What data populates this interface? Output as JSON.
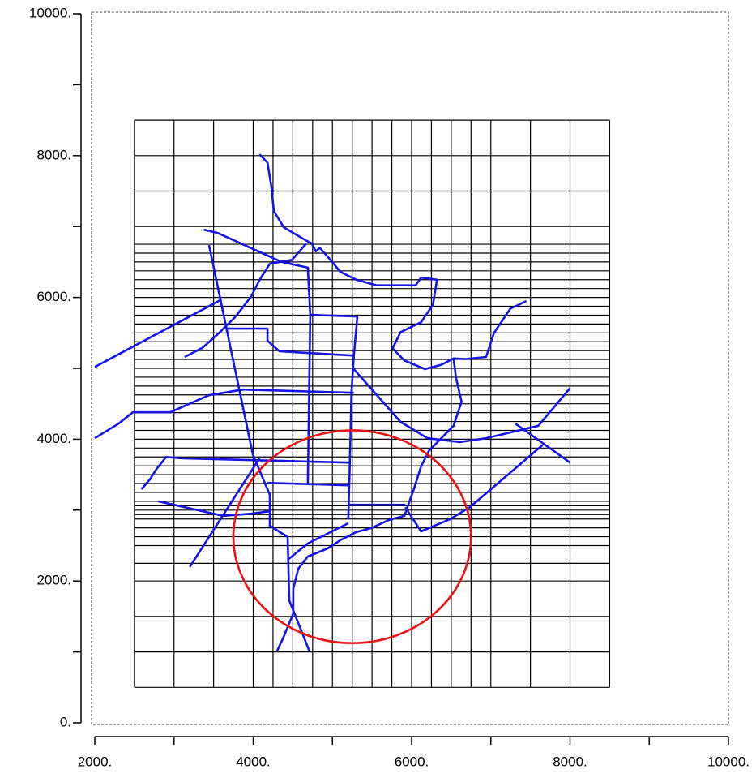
{
  "chart_data": {
    "type": "line",
    "xlim": [
      2000,
      10000
    ],
    "ylim": [
      0,
      10000
    ],
    "xticks": [
      {
        "value": 2000,
        "label": "2000."
      },
      {
        "value": 4000,
        "label": "4000."
      },
      {
        "value": 6000,
        "label": "6000."
      },
      {
        "value": 8000,
        "label": "8000."
      },
      {
        "value": 10000,
        "label": "10000."
      }
    ],
    "yticks": [
      {
        "value": 0,
        "label": "0."
      },
      {
        "value": 2000,
        "label": "2000."
      },
      {
        "value": 4000,
        "label": "4000."
      },
      {
        "value": 6000,
        "label": "6000."
      },
      {
        "value": 8000,
        "label": "8000."
      },
      {
        "value": 10000,
        "label": "10000."
      }
    ],
    "xminor_ticks": [
      3000,
      5000,
      7000,
      9000
    ],
    "yminor_ticks": [
      1000,
      3000,
      5000,
      7000,
      9000
    ],
    "grid_x": [
      2500,
      3000,
      3500,
      4000,
      4250,
      4500,
      4750,
      5000,
      5250,
      5500,
      5750,
      6000,
      6250,
      6500,
      6750,
      7000,
      7500,
      8000,
      8500
    ],
    "grid_y": [
      500,
      1000,
      1500,
      2000,
      2250,
      2500,
      2625,
      2750,
      2875,
      2937.5,
      3000,
      3062.5,
      3125,
      3250,
      3375,
      3500,
      3625,
      3750,
      3875,
      4000,
      4125,
      4250,
      4375,
      4500,
      4625,
      4750,
      4875,
      5000,
      5125,
      5250,
      5375,
      5500,
      5625,
      5750,
      5875,
      6000,
      6125,
      6250,
      6375,
      6500,
      6625,
      6750,
      7000,
      7500,
      8000,
      8500
    ],
    "grid_color": "#000000",
    "line_color": "#1414e6",
    "circle": {
      "center": [
        5250,
        2625
      ],
      "radius": 1500,
      "color": "#e61414"
    },
    "features": [
      {
        "x": [
          2000,
          3600
        ],
        "y": [
          5020,
          5970
        ]
      },
      {
        "x": [
          3442,
          3995,
          4210,
          4210,
          4435,
          4455,
          4711
        ],
        "y": [
          6738,
          3787,
          3215,
          2780,
          2620,
          1727,
          1007
        ]
      },
      {
        "x": [
          3375,
          3550,
          4360,
          4690,
          4720,
          4690
        ],
        "y": [
          6955,
          6910,
          6500,
          6420,
          5754,
          3375
        ]
      },
      {
        "x": [
          4720,
          5315,
          5270,
          5240,
          5220,
          5200
        ],
        "y": [
          5754,
          5731,
          5160,
          4650,
          3680,
          2870
        ]
      },
      {
        "x": [
          3670,
          4180,
          4180,
          4330,
          5270
        ],
        "y": [
          5560,
          5560,
          5390,
          5240,
          5180
        ]
      },
      {
        "x": [
          2000,
          2300,
          2480,
          2950,
          3440,
          3870,
          5270
        ],
        "y": [
          4015,
          4220,
          4380,
          4380,
          4620,
          4700,
          4655
        ]
      },
      {
        "x": [
          5270,
          5860,
          6200,
          6610,
          6940,
          7600,
          8000
        ],
        "y": [
          4990,
          4245,
          4015,
          3960,
          4015,
          4190,
          4720
        ]
      },
      {
        "x": [
          7310,
          8000
        ],
        "y": [
          4220,
          3670
        ]
      },
      {
        "x": [
          3200,
          4080
        ],
        "y": [
          2200,
          3730
        ]
      },
      {
        "x": [
          2590,
          2700,
          2780,
          2900,
          3105,
          5225
        ],
        "y": [
          3295,
          3440,
          3580,
          3750,
          3730,
          3670
        ]
      },
      {
        "x": [
          4180,
          5200
        ],
        "y": [
          3385,
          3350
        ]
      },
      {
        "x": [
          2800,
          3620,
          3975,
          4210
        ],
        "y": [
          3125,
          2920,
          2950,
          2985
        ]
      },
      {
        "x": [
          5200,
          5920
        ],
        "y": [
          3075,
          3075
        ]
      },
      {
        "x": [
          4435,
          4690,
          5200
        ],
        "y": [
          2300,
          2530,
          2815
        ]
      },
      {
        "x": [
          5920,
          6120,
          6480,
          6735,
          7655
        ],
        "y": [
          3040,
          2700,
          2870,
          3040,
          3920
        ]
      },
      {
        "x": [
          4080,
          4180,
          4230,
          4260,
          4385,
          4640,
          4740,
          4790,
          4840,
          4975,
          5100,
          5300,
          5560,
          5815,
          6050,
          6120,
          6320,
          6270,
          6120,
          5860,
          5760,
          5910,
          6170,
          6375,
          6530,
          6680,
          6940,
          7040,
          7245,
          7450
        ],
        "y": [
          8020,
          7900,
          7560,
          7220,
          6990,
          6820,
          6760,
          6650,
          6700,
          6530,
          6360,
          6250,
          6170,
          6170,
          6170,
          6280,
          6250,
          5900,
          5650,
          5510,
          5280,
          5110,
          4990,
          5050,
          5140,
          5130,
          5160,
          5500,
          5840,
          5950
        ]
      },
      {
        "x": [
          6530,
          6560,
          6630,
          6530,
          6375,
          6220,
          6120,
          6020,
          5965,
          5910,
          5710,
          5500,
          5300,
          5100,
          4940,
          4690,
          4570,
          4505,
          4505,
          4380,
          4300
        ],
        "y": [
          5140,
          4870,
          4530,
          4190,
          4015,
          3840,
          3615,
          3270,
          3100,
          2920,
          2860,
          2750,
          2690,
          2575,
          2460,
          2345,
          2175,
          1890,
          1545,
          1200,
          1010
        ]
      },
      {
        "x": [
          3135,
          3360,
          3570,
          3770,
          3975,
          4080,
          4210,
          4490,
          4670
        ],
        "y": [
          5160,
          5290,
          5500,
          5720,
          6015,
          6245,
          6475,
          6530,
          6760
        ]
      }
    ]
  }
}
